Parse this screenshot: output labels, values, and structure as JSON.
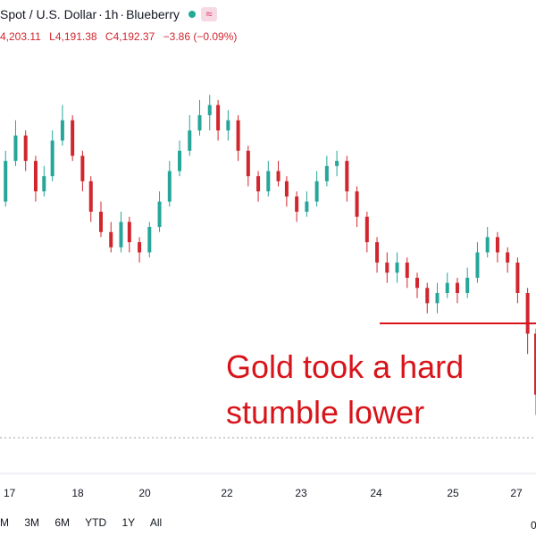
{
  "header": {
    "symbol": "Spot / U.S. Dollar",
    "interval": "1h",
    "source": "Blueberry",
    "status_dot_color": "#22ab94",
    "indicator_icon": "wave-icon",
    "open": "4,203.11",
    "low": "L4,191.38",
    "close": "C4,192.37",
    "change": "−3.86 (−0.09%)"
  },
  "annotation": {
    "line1": "Gold took a hard",
    "line2": "stumble lower",
    "color": "#d8141a"
  },
  "range_buttons": [
    "M",
    "3M",
    "6M",
    "YTD",
    "1Y",
    "All"
  ],
  "chart_data": {
    "type": "candlestick",
    "title": "",
    "xlabel": "",
    "ylabel": "",
    "x_ticks": [
      "17",
      "18",
      "20",
      "22",
      "23",
      "24",
      "25",
      "27"
    ],
    "partial_tick_label": "0",
    "ylim": [
      4000,
      4400
    ],
    "up_color": "#26a69a",
    "down_color": "#d1262e",
    "grid": false,
    "support_level": 4140,
    "current_price_level": 4050,
    "x_start": 0,
    "x_end": 10,
    "candles": [
      [
        3.8,
        4170,
        4200,
        4215,
        4175
      ],
      [
        4.5,
        4200,
        4250,
        4260,
        4195
      ],
      [
        5.2,
        4250,
        4290,
        4300,
        4245
      ],
      [
        5.8,
        4290,
        4315,
        4330,
        4285
      ],
      [
        6.4,
        4315,
        4290,
        4320,
        4280
      ],
      [
        7.0,
        4290,
        4260,
        4295,
        4250
      ],
      [
        7.5,
        4260,
        4275,
        4285,
        4255
      ],
      [
        8.0,
        4275,
        4310,
        4320,
        4270
      ],
      [
        8.6,
        4310,
        4330,
        4345,
        4305
      ],
      [
        9.2,
        4330,
        4295,
        4335,
        4290
      ],
      [
        9.8,
        4295,
        4270,
        4300,
        4260
      ],
      [
        10.3,
        4270,
        4240,
        4275,
        4230
      ],
      [
        10.9,
        4240,
        4220,
        4250,
        4215
      ],
      [
        11.5,
        4220,
        4205,
        4230,
        4200
      ],
      [
        12.1,
        4205,
        4230,
        4240,
        4200
      ],
      [
        12.6,
        4230,
        4210,
        4235,
        4200
      ],
      [
        13.2,
        4210,
        4200,
        4215,
        4190
      ],
      [
        13.8,
        4200,
        4225,
        4230,
        4195
      ],
      [
        14.4,
        4225,
        4250,
        4260,
        4220
      ],
      [
        15.0,
        4250,
        4280,
        4290,
        4245
      ],
      [
        15.6,
        4280,
        4300,
        4310,
        4275
      ],
      [
        16.2,
        4300,
        4320,
        4335,
        4295
      ],
      [
        16.8,
        4320,
        4335,
        4350,
        4315
      ],
      [
        17.4,
        4335,
        4345,
        4355,
        4320
      ],
      [
        17.9,
        4345,
        4320,
        4350,
        4310
      ],
      [
        18.5,
        4320,
        4330,
        4340,
        4310
      ],
      [
        19.1,
        4330,
        4300,
        4335,
        4290
      ],
      [
        19.7,
        4300,
        4275,
        4305,
        4265
      ],
      [
        20.3,
        4275,
        4260,
        4280,
        4250
      ],
      [
        20.9,
        4260,
        4280,
        4290,
        4255
      ],
      [
        21.5,
        4280,
        4270,
        4290,
        4265
      ],
      [
        22.0,
        4270,
        4255,
        4275,
        4245
      ],
      [
        22.6,
        4255,
        4240,
        4260,
        4230
      ],
      [
        23.2,
        4240,
        4250,
        4260,
        4235
      ],
      [
        23.8,
        4250,
        4270,
        4280,
        4245
      ],
      [
        24.4,
        4270,
        4285,
        4295,
        4265
      ],
      [
        25.0,
        4285,
        4290,
        4300,
        4275
      ],
      [
        25.6,
        4290,
        4260,
        4295,
        4250
      ],
      [
        26.2,
        4260,
        4235,
        4265,
        4225
      ],
      [
        26.8,
        4235,
        4210,
        4240,
        4200
      ],
      [
        27.4,
        4210,
        4190,
        4215,
        4180
      ],
      [
        28.0,
        4190,
        4180,
        4200,
        4170
      ],
      [
        28.6,
        4180,
        4190,
        4200,
        4170
      ],
      [
        29.2,
        4190,
        4175,
        4195,
        4165
      ],
      [
        29.8,
        4175,
        4165,
        4180,
        4155
      ],
      [
        30.4,
        4165,
        4150,
        4170,
        4140
      ],
      [
        31.0,
        4150,
        4160,
        4170,
        4140
      ],
      [
        31.6,
        4160,
        4170,
        4180,
        4155
      ],
      [
        32.2,
        4170,
        4160,
        4175,
        4150
      ],
      [
        32.8,
        4160,
        4175,
        4185,
        4155
      ],
      [
        33.4,
        4175,
        4200,
        4210,
        4170
      ],
      [
        34.0,
        4200,
        4215,
        4225,
        4195
      ],
      [
        34.6,
        4215,
        4200,
        4220,
        4190
      ],
      [
        35.2,
        4200,
        4190,
        4205,
        4180
      ],
      [
        35.8,
        4190,
        4160,
        4195,
        4150
      ],
      [
        36.4,
        4160,
        4120,
        4165,
        4100
      ],
      [
        36.9,
        4120,
        4060,
        4125,
        4040
      ]
    ]
  }
}
